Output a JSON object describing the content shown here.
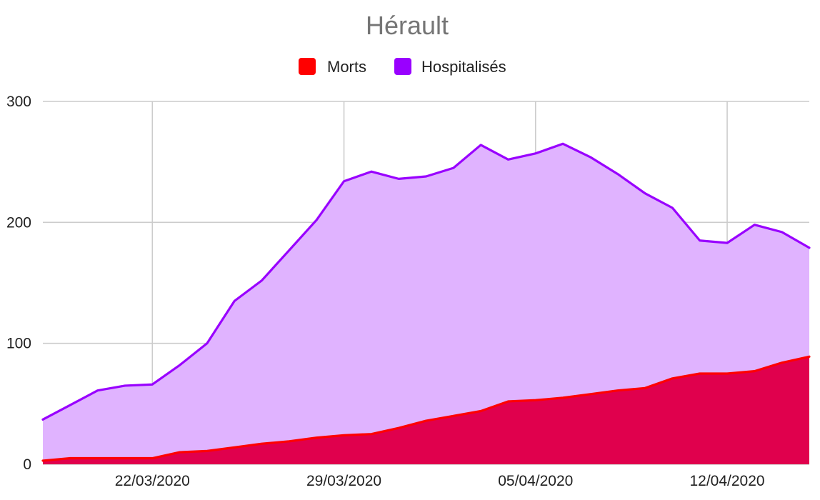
{
  "chart_data": {
    "type": "area",
    "title": "Hérault",
    "xlabel": "",
    "ylabel": "",
    "x_tick_labels": [
      "22/03/2020",
      "29/03/2020",
      "05/04/2020",
      "12/04/2020"
    ],
    "x_tick_indices": [
      4,
      11,
      18,
      25
    ],
    "y_ticks": [
      0,
      100,
      200,
      300
    ],
    "ylim": [
      0,
      300
    ],
    "grid": true,
    "legend_position": "top",
    "stacked": false,
    "dates": [
      "18/03/2020",
      "19/03/2020",
      "20/03/2020",
      "21/03/2020",
      "22/03/2020",
      "23/03/2020",
      "24/03/2020",
      "25/03/2020",
      "26/03/2020",
      "27/03/2020",
      "28/03/2020",
      "29/03/2020",
      "30/03/2020",
      "31/03/2020",
      "01/04/2020",
      "02/04/2020",
      "03/04/2020",
      "04/04/2020",
      "05/04/2020",
      "06/04/2020",
      "07/04/2020",
      "08/04/2020",
      "09/04/2020",
      "10/04/2020",
      "11/04/2020",
      "12/04/2020",
      "13/04/2020",
      "14/04/2020",
      "15/04/2020"
    ],
    "series": [
      {
        "name": "Morts",
        "color": "#ff0000",
        "fill_color": "#e0004d",
        "values": [
          3,
          5,
          5,
          5,
          5,
          10,
          11,
          14,
          17,
          19,
          22,
          24,
          25,
          30,
          36,
          40,
          44,
          52,
          53,
          55,
          58,
          61,
          63,
          71,
          75,
          75,
          77,
          84,
          89
        ]
      },
      {
        "name": "Hospitalisés",
        "color": "#9900ff",
        "fill_color": "#e0b3ff",
        "values": [
          37,
          49,
          61,
          65,
          66,
          82,
          100,
          135,
          152,
          177,
          202,
          234,
          242,
          236,
          238,
          245,
          264,
          252,
          257,
          265,
          254,
          240,
          224,
          212,
          185,
          183,
          198,
          192,
          179
        ]
      }
    ]
  }
}
